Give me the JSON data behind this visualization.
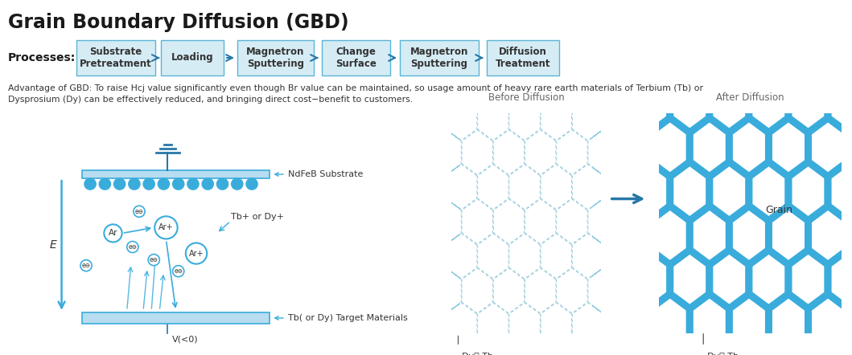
{
  "title": "Grain Boundary Diffusion (GBD)",
  "title_fontsize": 17,
  "process_label": "Processes:",
  "process_steps": [
    "Substrate\nPretreatment",
    "Loading",
    "Magnetron\nSputtering",
    "Change\nSurface",
    "Magnetron\nSputtering",
    "Diffusion\nTreatment"
  ],
  "box_color": "#d6ecf5",
  "box_edge_color": "#5ab4d6",
  "arrow_color": "#2878a8",
  "advantage_text": "Advantage of GBD: To raise Hcj value significantly even though Br value can be maintained, so usage amount of heavy rare earth materials of Terbium (Tb) or\nDysprosium (Dy) can be effectively reduced, and bringing direct cost−benefit to customers.",
  "blue_color": "#3aacdc",
  "light_blue": "#b8dcf0",
  "dark_blue": "#2878a8",
  "before_title": "Before Diffusion",
  "after_title": "After Diffusion",
  "grain_label": "Grain",
  "dy_tb_label": "Dy， Tb",
  "background": "#ffffff"
}
